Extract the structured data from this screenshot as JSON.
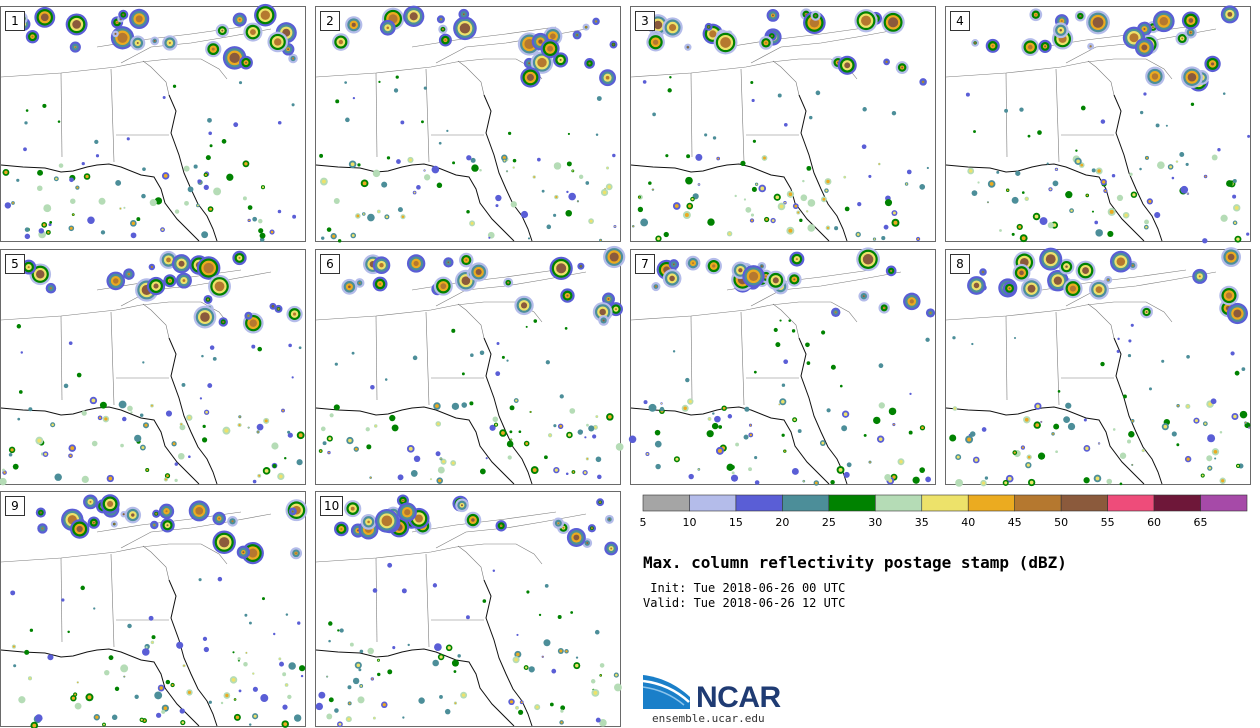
{
  "panels": [
    {
      "label": "1"
    },
    {
      "label": "2"
    },
    {
      "label": "3"
    },
    {
      "label": "4"
    },
    {
      "label": "5"
    },
    {
      "label": "6"
    },
    {
      "label": "7"
    },
    {
      "label": "8"
    },
    {
      "label": "9"
    },
    {
      "label": "10"
    }
  ],
  "colorbar": {
    "colors": [
      "#a5a5a5",
      "#b4bcea",
      "#5a5ed6",
      "#4c8e99",
      "#008200",
      "#b5dcb6",
      "#ede26a",
      "#ebab20",
      "#b5782f",
      "#8b5a3c",
      "#ee4c7a",
      "#6e1739",
      "#a64aa8"
    ],
    "ticks": [
      "5",
      "10",
      "15",
      "20",
      "25",
      "30",
      "35",
      "40",
      "45",
      "50",
      "55",
      "60",
      "65"
    ]
  },
  "title": "Max. column reflectivity postage stamp (dBZ)",
  "init_line": " Init: Tue 2018-06-26 00 UTC",
  "valid_line": "Valid: Tue 2018-06-26 12 UTC",
  "logo": {
    "name": "NCAR",
    "url": "ensemble.ucar.edu"
  }
}
